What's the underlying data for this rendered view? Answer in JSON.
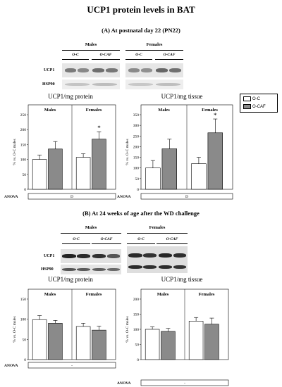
{
  "figure": {
    "title": "UCP1 protein levels in BAT",
    "section_a": "(A) At postnatal day 22 (PN22)",
    "section_b": "(B) At 24 weeks of age after the WD challenge"
  },
  "blot": {
    "males": "Males",
    "females": "Females",
    "lane_oc": "O-C",
    "lane_ocaf": "O-CAF",
    "ucp1": "UCP1",
    "hsp90": "HSP90"
  },
  "legend": {
    "oc": "O-C",
    "ocaf": "O-CAF",
    "oc_color": "#ffffff",
    "ocaf_color": "#8a8a8a"
  },
  "chart_data": [
    {
      "type": "bar",
      "title": "UCP1/mg protein",
      "ylabel": "% vs. O-C males",
      "ylim": [
        0,
        250
      ],
      "yticks": [
        0,
        50,
        100,
        150,
        200,
        250
      ],
      "categories": [
        "Males",
        "Females"
      ],
      "series": [
        {
          "name": "O-C",
          "values": [
            100,
            107
          ],
          "errors": [
            15,
            12
          ]
        },
        {
          "name": "O-CAF",
          "values": [
            135,
            168
          ],
          "errors": [
            25,
            25
          ]
        }
      ],
      "significance": [
        "",
        "*"
      ],
      "anova_label": "ANOVA",
      "anova": "D"
    },
    {
      "type": "bar",
      "title": "UCP1/mg tissue",
      "ylabel": "% vs. O-C males",
      "ylim": [
        0,
        350
      ],
      "yticks": [
        0,
        50,
        100,
        150,
        200,
        250,
        300,
        350
      ],
      "categories": [
        "Males",
        "Females"
      ],
      "series": [
        {
          "name": "O-C",
          "values": [
            100,
            120
          ],
          "errors": [
            35,
            30
          ]
        },
        {
          "name": "O-CAF",
          "values": [
            190,
            265
          ],
          "errors": [
            45,
            65
          ]
        }
      ],
      "significance": [
        "",
        "*"
      ],
      "anova_label": "ANOVA",
      "anova": "D"
    },
    {
      "type": "bar",
      "title": "UCP1/mg protein",
      "ylabel": "% vs. O-C males",
      "ylim": [
        0,
        150
      ],
      "yticks": [
        0,
        50,
        100,
        150
      ],
      "categories": [
        "Males",
        "Females"
      ],
      "series": [
        {
          "name": "O-C",
          "values": [
            99,
            82
          ],
          "errors": [
            10,
            8
          ]
        },
        {
          "name": "O-CAF",
          "values": [
            90,
            73
          ],
          "errors": [
            7,
            10
          ]
        }
      ],
      "significance": [
        "",
        ""
      ],
      "anova_label": "ANOVA",
      "anova": "-"
    },
    {
      "type": "bar",
      "title": "UCP1/mg tissue",
      "ylabel": "% vs. O-C males",
      "ylim": [
        0,
        200
      ],
      "yticks": [
        0,
        50,
        100,
        150,
        200
      ],
      "categories": [
        "Males",
        "Females"
      ],
      "series": [
        {
          "name": "O-C",
          "values": [
            100,
            127
          ],
          "errors": [
            8,
            12
          ]
        },
        {
          "name": "O-CAF",
          "values": [
            93,
            117
          ],
          "errors": [
            10,
            20
          ]
        }
      ],
      "significance": [
        "",
        ""
      ],
      "anova_label": "ANOVA",
      "anova": "-"
    }
  ]
}
